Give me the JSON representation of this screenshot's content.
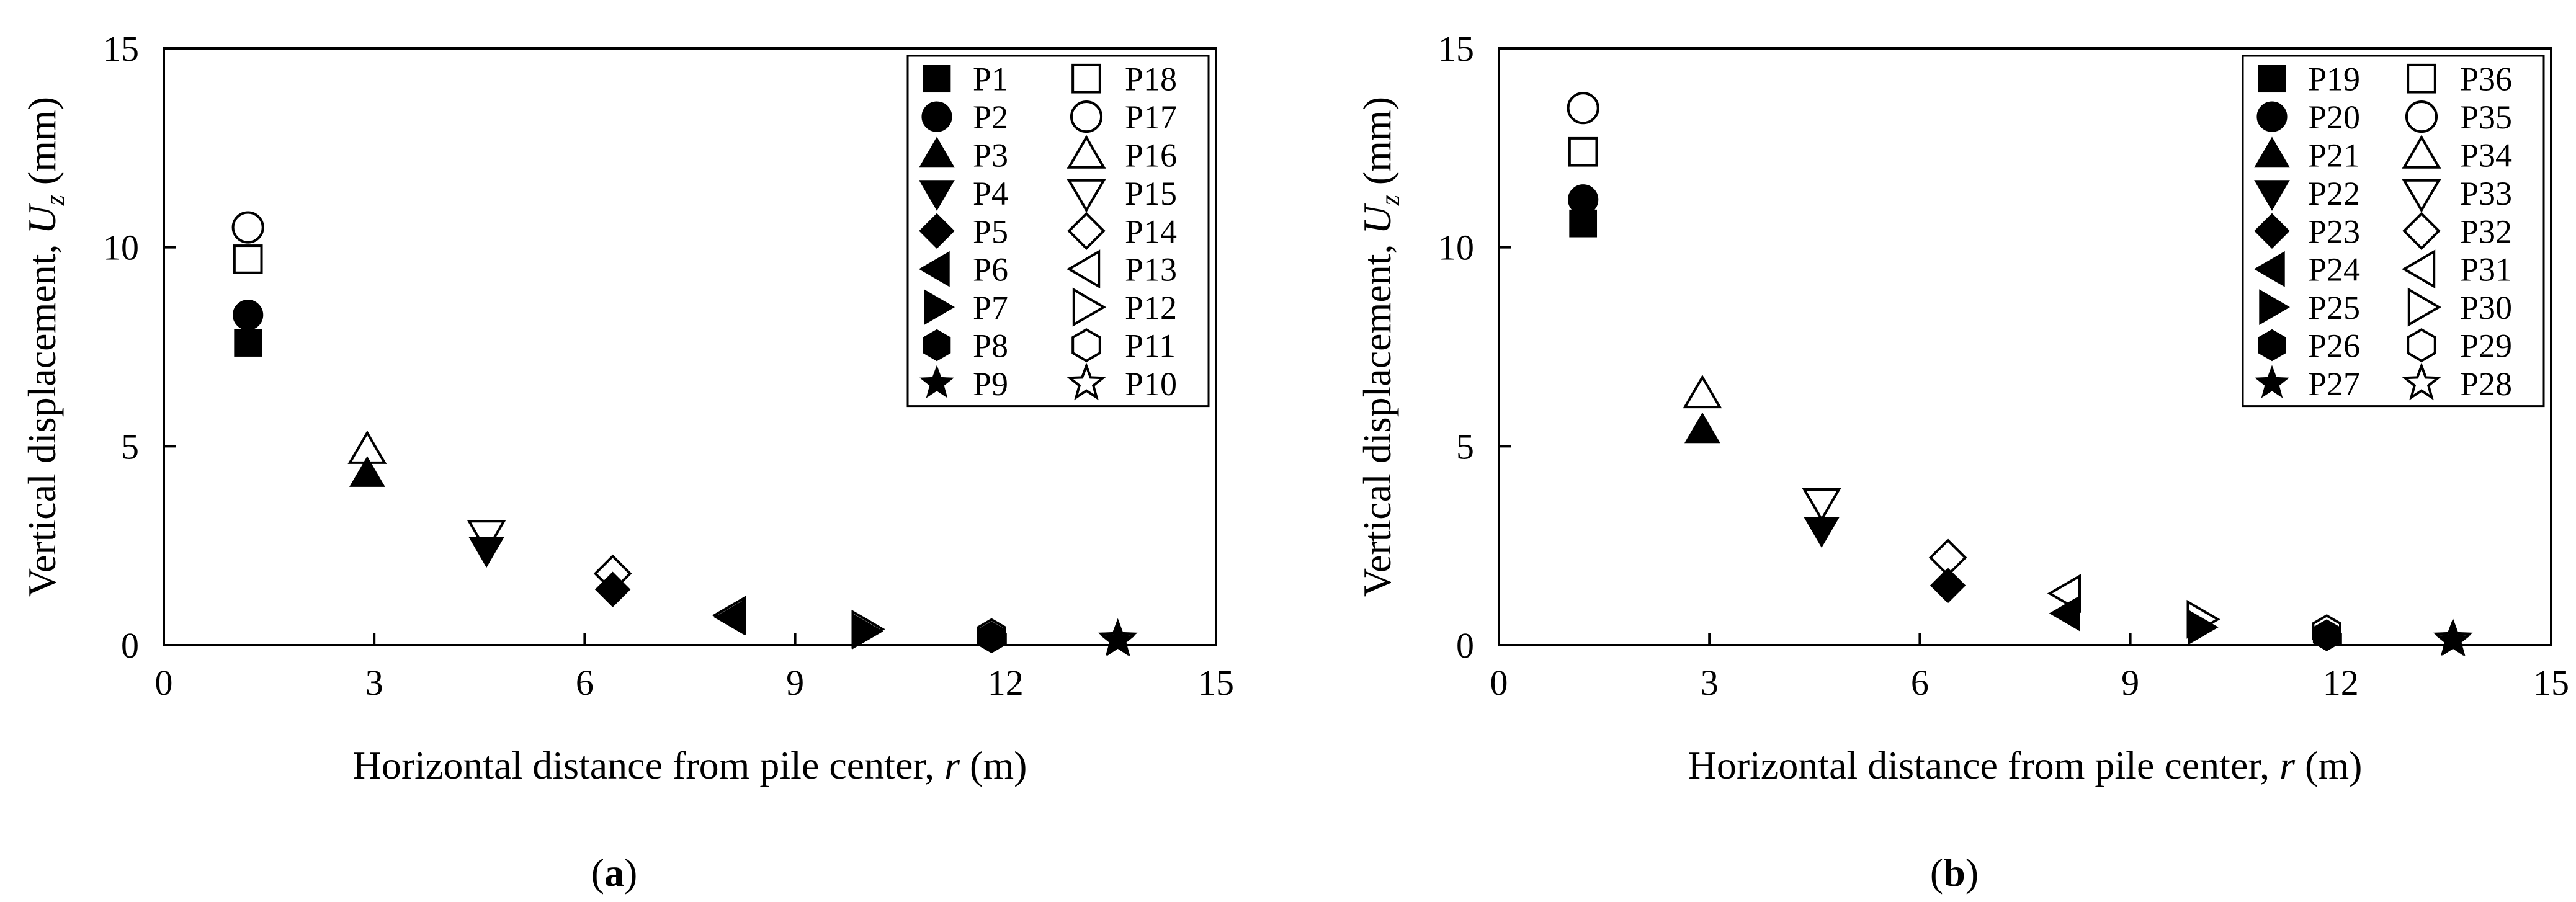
{
  "chart_data": [
    {
      "type": "scatter",
      "panel_label": "(a)",
      "xlabel": "Horizontal distance from pile center, r (m)",
      "ylabel": "Vertical displacement, Uz (mm)",
      "xlim": [
        0,
        15
      ],
      "ylim": [
        0,
        15
      ],
      "xticks": [
        0,
        3,
        6,
        9,
        12,
        15
      ],
      "yticks": [
        0,
        5,
        10,
        15
      ],
      "grid": false,
      "legend_position": "top-right",
      "series": [
        {
          "name": "P1",
          "marker": "square",
          "fill": "solid",
          "x": 1.2,
          "y": 7.6
        },
        {
          "name": "P2",
          "marker": "circle",
          "fill": "solid",
          "x": 1.2,
          "y": 8.3
        },
        {
          "name": "P3",
          "marker": "triangle-up",
          "fill": "solid",
          "x": 2.9,
          "y": 4.3
        },
        {
          "name": "P4",
          "marker": "triangle-down",
          "fill": "solid",
          "x": 4.6,
          "y": 2.4
        },
        {
          "name": "P5",
          "marker": "diamond",
          "fill": "solid",
          "x": 6.4,
          "y": 1.4
        },
        {
          "name": "P6",
          "marker": "triangle-left",
          "fill": "solid",
          "x": 8.1,
          "y": 0.7
        },
        {
          "name": "P7",
          "marker": "triangle-right",
          "fill": "solid",
          "x": 10.0,
          "y": 0.35
        },
        {
          "name": "P8",
          "marker": "hexagon",
          "fill": "solid",
          "x": 11.8,
          "y": 0.2
        },
        {
          "name": "P9",
          "marker": "star",
          "fill": "solid",
          "x": 13.6,
          "y": 0.1
        },
        {
          "name": "P18",
          "marker": "square",
          "fill": "open",
          "x": 1.2,
          "y": 9.7
        },
        {
          "name": "P17",
          "marker": "circle",
          "fill": "open",
          "x": 1.2,
          "y": 10.5
        },
        {
          "name": "P16",
          "marker": "triangle-up",
          "fill": "open",
          "x": 2.9,
          "y": 4.9
        },
        {
          "name": "P15",
          "marker": "triangle-down",
          "fill": "open",
          "x": 4.6,
          "y": 2.8
        },
        {
          "name": "P14",
          "marker": "diamond",
          "fill": "open",
          "x": 6.4,
          "y": 1.8
        },
        {
          "name": "P13",
          "marker": "triangle-left",
          "fill": "open",
          "x": 8.1,
          "y": 0.75
        },
        {
          "name": "P12",
          "marker": "triangle-right",
          "fill": "open",
          "x": 10.0,
          "y": 0.4
        },
        {
          "name": "P11",
          "marker": "hexagon",
          "fill": "open",
          "x": 11.8,
          "y": 0.25
        },
        {
          "name": "P10",
          "marker": "star",
          "fill": "open",
          "x": 13.6,
          "y": 0.15
        }
      ]
    },
    {
      "type": "scatter",
      "panel_label": "(b)",
      "xlabel": "Horizontal distance from pile center, r (m)",
      "ylabel": "Vertical displacement, Uz (mm)",
      "xlim": [
        0,
        15
      ],
      "ylim": [
        0,
        15
      ],
      "xticks": [
        0,
        3,
        6,
        9,
        12,
        15
      ],
      "yticks": [
        0,
        5,
        10,
        15
      ],
      "grid": false,
      "legend_position": "top-right",
      "series": [
        {
          "name": "P19",
          "marker": "square",
          "fill": "solid",
          "x": 1.2,
          "y": 10.6
        },
        {
          "name": "P20",
          "marker": "circle",
          "fill": "solid",
          "x": 1.2,
          "y": 11.2
        },
        {
          "name": "P21",
          "marker": "triangle-up",
          "fill": "solid",
          "x": 2.9,
          "y": 5.4
        },
        {
          "name": "P22",
          "marker": "triangle-down",
          "fill": "solid",
          "x": 4.6,
          "y": 2.9
        },
        {
          "name": "P23",
          "marker": "diamond",
          "fill": "solid",
          "x": 6.4,
          "y": 1.5
        },
        {
          "name": "P24",
          "marker": "triangle-left",
          "fill": "solid",
          "x": 8.1,
          "y": 0.8
        },
        {
          "name": "P25",
          "marker": "triangle-right",
          "fill": "solid",
          "x": 10.0,
          "y": 0.45
        },
        {
          "name": "P26",
          "marker": "hexagon",
          "fill": "solid",
          "x": 11.8,
          "y": 0.25
        },
        {
          "name": "P27",
          "marker": "star",
          "fill": "solid",
          "x": 13.6,
          "y": 0.1
        },
        {
          "name": "P36",
          "marker": "square",
          "fill": "open",
          "x": 1.2,
          "y": 12.4
        },
        {
          "name": "P35",
          "marker": "circle",
          "fill": "open",
          "x": 1.2,
          "y": 13.5
        },
        {
          "name": "P34",
          "marker": "triangle-up",
          "fill": "open",
          "x": 2.9,
          "y": 6.3
        },
        {
          "name": "P33",
          "marker": "triangle-down",
          "fill": "open",
          "x": 4.6,
          "y": 3.6
        },
        {
          "name": "P32",
          "marker": "diamond",
          "fill": "open",
          "x": 6.4,
          "y": 2.2
        },
        {
          "name": "P31",
          "marker": "triangle-left",
          "fill": "open",
          "x": 8.1,
          "y": 1.3
        },
        {
          "name": "P30",
          "marker": "triangle-right",
          "fill": "open",
          "x": 10.0,
          "y": 0.65
        },
        {
          "name": "P29",
          "marker": "hexagon",
          "fill": "open",
          "x": 11.8,
          "y": 0.35
        },
        {
          "name": "P28",
          "marker": "star",
          "fill": "open",
          "x": 13.6,
          "y": 0.15
        }
      ]
    }
  ]
}
